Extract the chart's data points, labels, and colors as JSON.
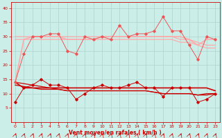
{
  "x": [
    0,
    1,
    2,
    3,
    4,
    5,
    6,
    7,
    8,
    9,
    10,
    11,
    12,
    13,
    14,
    15,
    16,
    17,
    18,
    19,
    20,
    21,
    22,
    23
  ],
  "line_jagged_lower": [
    7,
    12,
    13,
    15,
    13,
    13,
    12,
    8,
    10,
    12,
    13,
    12,
    12,
    13,
    14,
    12,
    12,
    9,
    12,
    12,
    12,
    7,
    8,
    10
  ],
  "line_flat_lower": [
    14,
    12,
    12,
    12,
    12,
    12,
    12,
    12,
    12,
    12,
    12,
    12,
    12,
    12,
    12,
    12,
    12,
    12,
    12,
    12,
    12,
    12,
    12,
    11
  ],
  "line_trend_lower1": [
    14,
    13.5,
    13,
    12.5,
    12,
    11.5,
    11,
    11,
    11,
    11,
    11,
    11,
    11,
    11,
    11,
    11,
    10.5,
    10,
    10,
    10,
    10,
    9.5,
    10,
    10
  ],
  "line_trend_lower2": [
    13,
    12.5,
    12,
    11.5,
    11.5,
    11.5,
    11,
    11,
    11,
    11,
    11,
    11,
    11,
    11,
    11,
    11,
    10.5,
    10,
    10,
    10,
    10,
    9.5,
    9.5,
    10
  ],
  "line_jagged_upper": [
    14,
    24,
    30,
    30,
    31,
    31,
    25,
    24,
    30,
    29,
    30,
    29,
    34,
    30,
    31,
    31,
    32,
    37,
    32,
    32,
    27,
    22,
    30,
    29
  ],
  "line_flat_upper": [
    14,
    29,
    30,
    30,
    30,
    30,
    29,
    29,
    29,
    29,
    30,
    30,
    30,
    30,
    30,
    30,
    30,
    30,
    30,
    30,
    29,
    27,
    29,
    29
  ],
  "line_trend_upper1": [
    30,
    30,
    30,
    30,
    30,
    30,
    30,
    30,
    30,
    30,
    30,
    30,
    30,
    30,
    30,
    30,
    30,
    30,
    30,
    29,
    29,
    28,
    27,
    27
  ],
  "line_trend_upper2": [
    29,
    29,
    29,
    29,
    29,
    29,
    29,
    29,
    29,
    29,
    29,
    29,
    29,
    29,
    29,
    29,
    29,
    29,
    29,
    28,
    28,
    27,
    26,
    26
  ],
  "bg_color": "#cceee8",
  "grid_color": "#aad4cc",
  "color_dark_red": "#cc0000",
  "color_med_red": "#ee5555",
  "color_light_pink": "#ffaaaa",
  "xlabel": "Vent moyen/en rafales ( km/h )",
  "ylim": [
    0,
    42
  ],
  "xlim": [
    -0.5,
    23.5
  ],
  "yticks": [
    5,
    10,
    15,
    20,
    25,
    30,
    35,
    40
  ],
  "xticks": [
    0,
    1,
    2,
    3,
    4,
    5,
    6,
    7,
    8,
    9,
    10,
    11,
    12,
    13,
    14,
    15,
    16,
    17,
    18,
    19,
    20,
    21,
    22,
    23
  ]
}
